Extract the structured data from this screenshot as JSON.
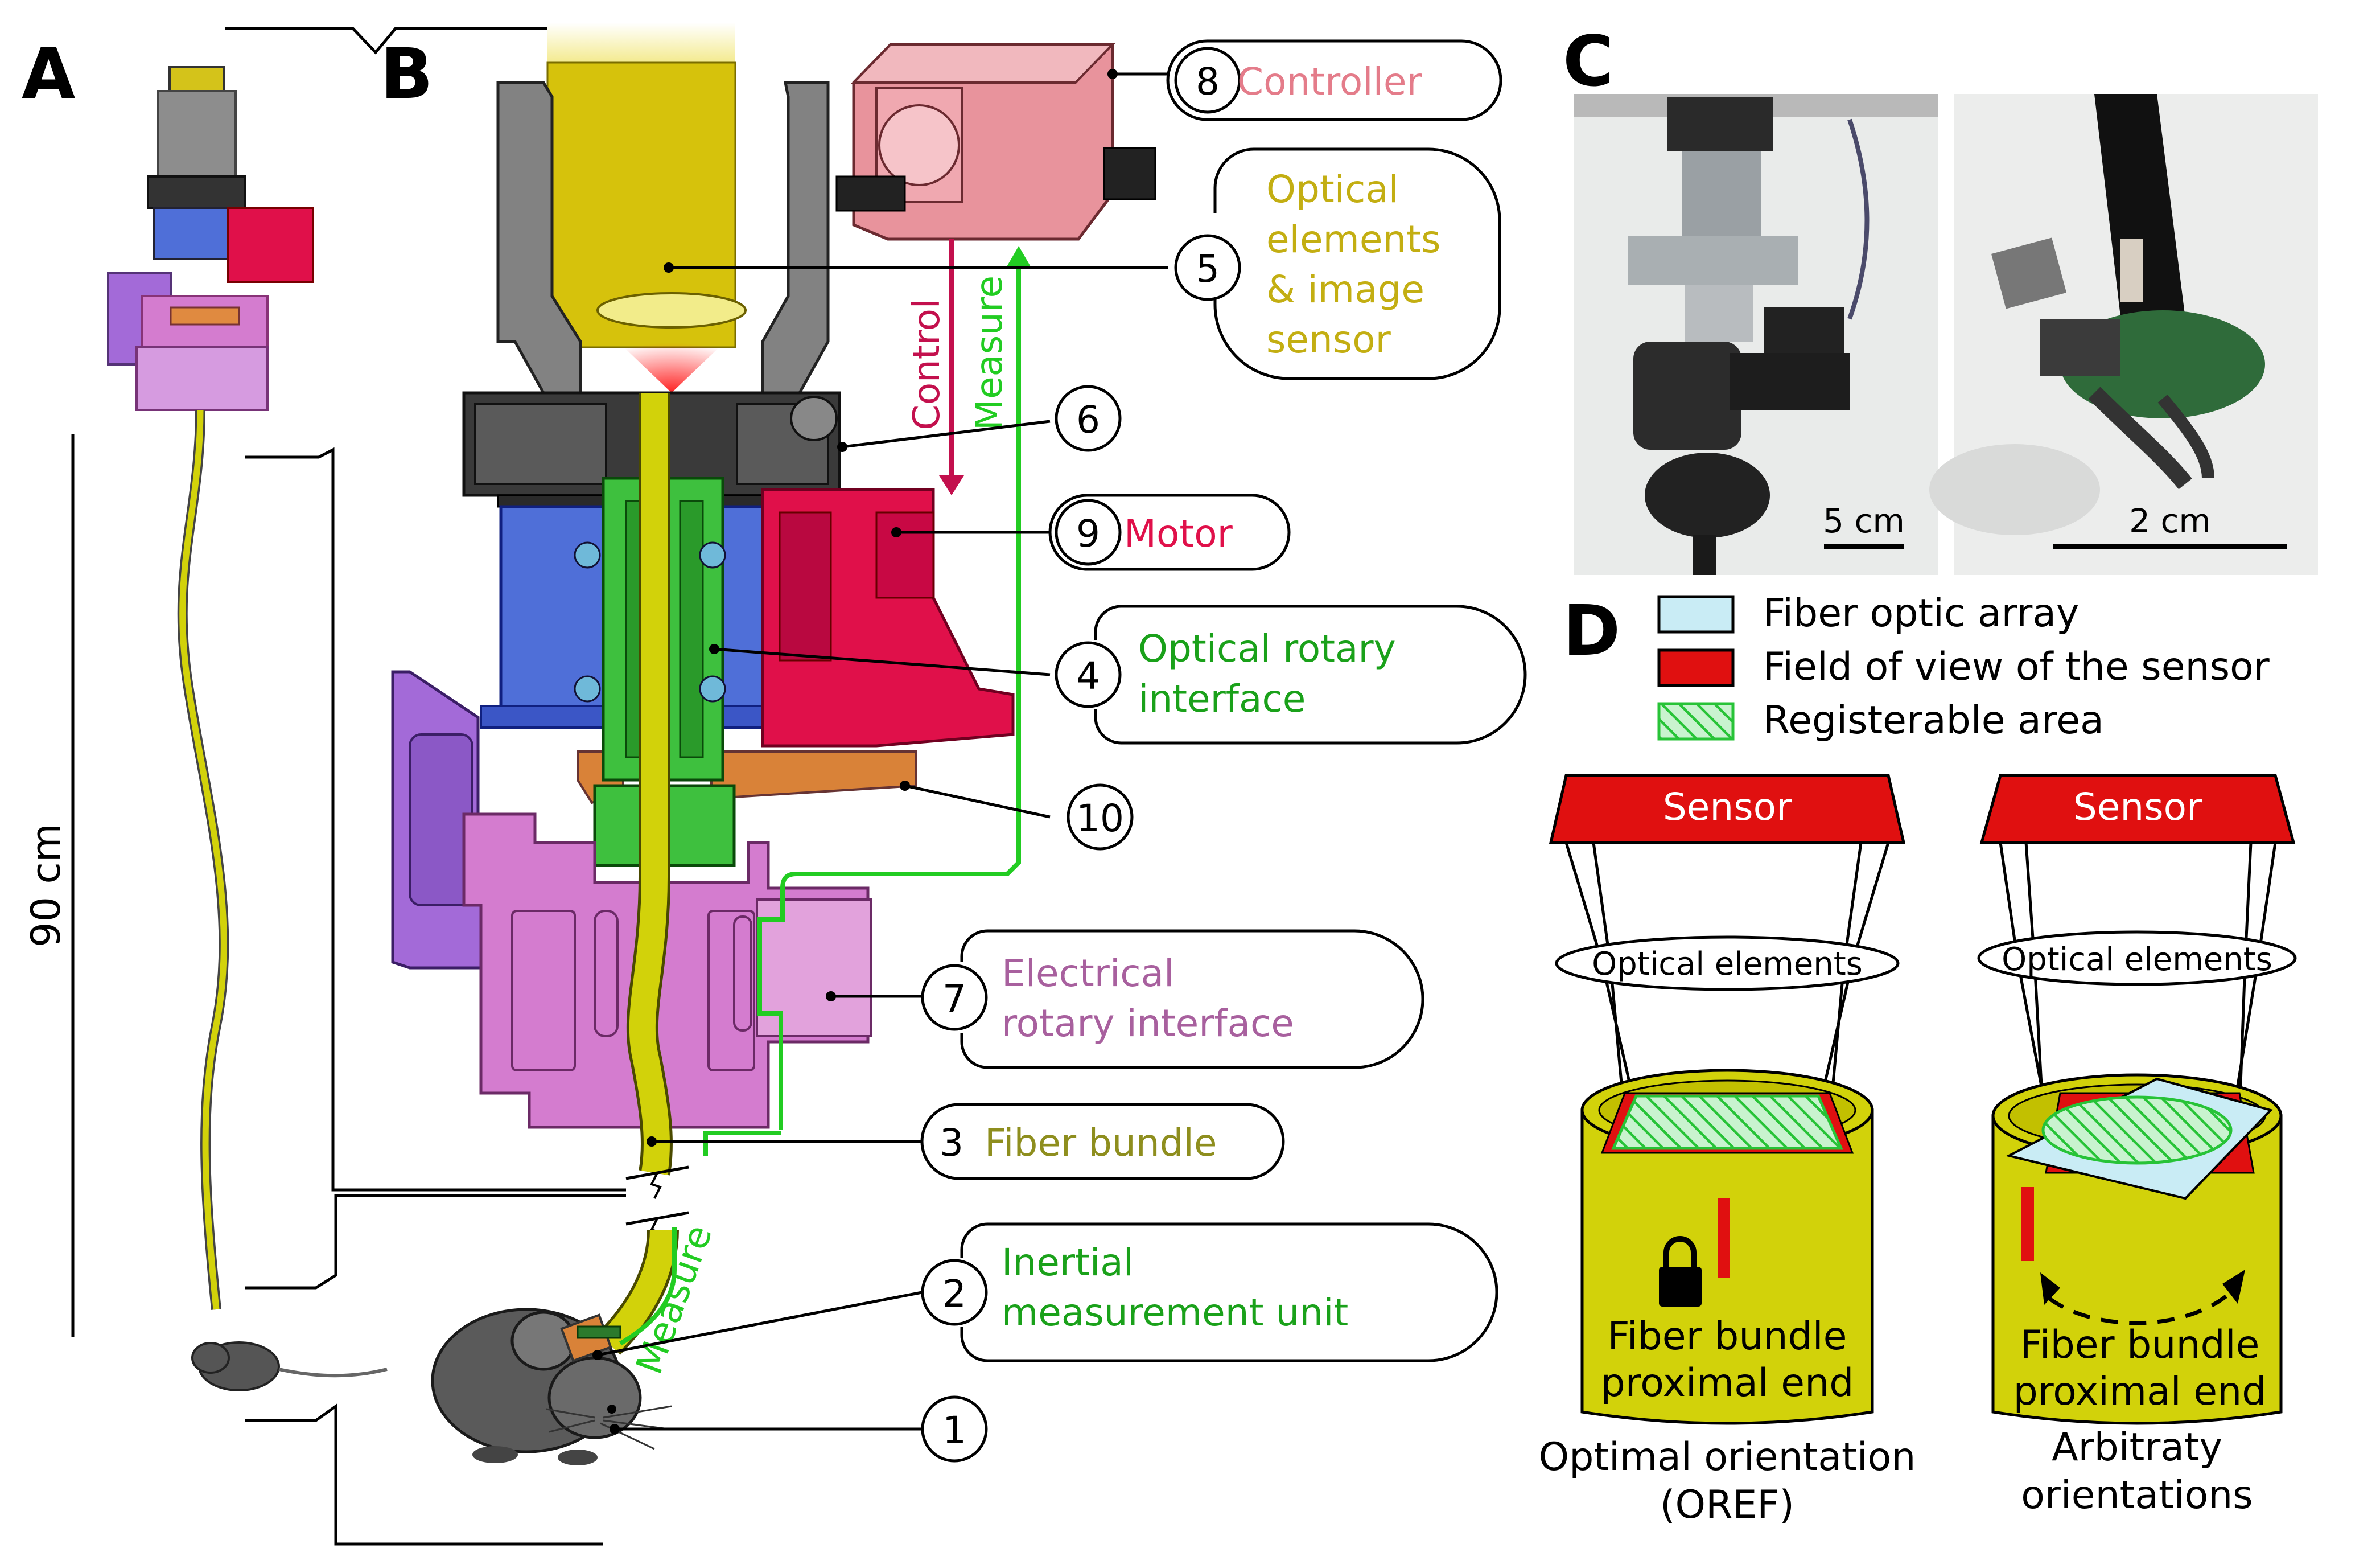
{
  "panels": {
    "A": "A",
    "B": "B",
    "C": "C",
    "D": "D"
  },
  "panel_a": {
    "length_label": "90 cm"
  },
  "callouts": [
    {
      "num": "8",
      "label": "Controller",
      "color": "#e47c8a"
    },
    {
      "num": "5",
      "lines": [
        "Optical",
        "elements",
        "& image",
        "sensor"
      ],
      "color": "#c3ae12"
    },
    {
      "num": "6"
    },
    {
      "num": "9",
      "label": "Motor",
      "color": "#e0104a"
    },
    {
      "num": "4",
      "lines": [
        "Optical rotary",
        "interface"
      ],
      "color": "#1aa11a"
    },
    {
      "num": "10"
    },
    {
      "num": "7",
      "lines": [
        "Electrical",
        "rotary interface"
      ],
      "color": "#a8609e"
    },
    {
      "num": "3",
      "label": "Fiber bundle",
      "color": "#8e8e1e"
    },
    {
      "num": "2",
      "lines": [
        "Inertial",
        "measurement unit"
      ],
      "color": "#1aa11a"
    },
    {
      "num": "1"
    }
  ],
  "arrows": {
    "control": "Control",
    "measure_top": "Measure",
    "measure_bottom": "Measure"
  },
  "scalebars": {
    "left": "5 cm",
    "right": "2 cm"
  },
  "legend": [
    {
      "label": "Fiber optic array",
      "color": "#c9ecf5"
    },
    {
      "label": "Field of view of the sensor",
      "color": "#e01010"
    },
    {
      "label": "Registerable area",
      "color": "#3fcf4a"
    }
  ],
  "panel_d": {
    "sensor_label": "Sensor",
    "optical_label": "Optical elements",
    "proximal_label": [
      "Fiber bundle",
      "proximal end"
    ],
    "left_caption": [
      "Optimal orientation",
      "(OREF)"
    ],
    "right_caption": [
      "Arbitraty",
      "orientations"
    ]
  },
  "colors": {
    "fiber": "#d2d20a",
    "motor": "#e0104a",
    "controller": "#e8939c",
    "optical_interface": "#3ec03e",
    "bearing": "#4f6fd8",
    "electrical": "#d47ccf",
    "bracket": "#a36ad8",
    "signal_green": "#22cc22",
    "control_arrow": "#c3104d"
  }
}
